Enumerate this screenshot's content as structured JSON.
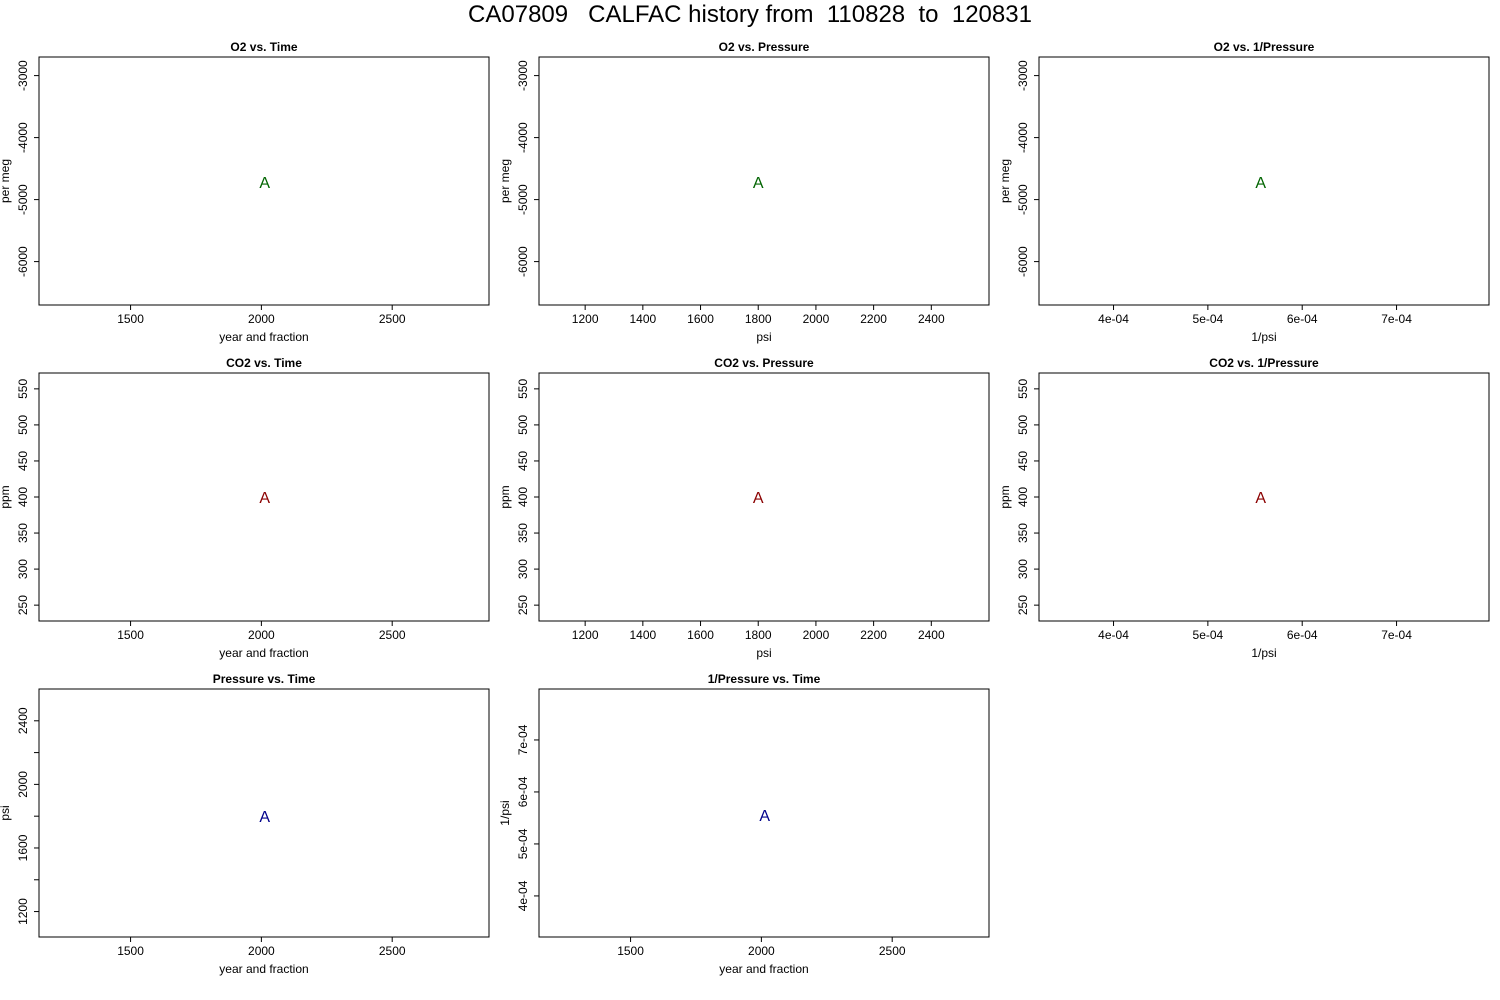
{
  "page_title": "CA07809   CALFAC history from  110828  to  120831",
  "chart_data": [
    {
      "type": "scatter",
      "title": "O2 vs. Time",
      "xlabel": "year and fraction",
      "ylabel": "per meg",
      "xlim": [
        1150,
        2870
      ],
      "ylim": [
        -6700,
        -2700
      ],
      "xticks": [
        1500,
        2000,
        2500
      ],
      "xtick_labels": [
        "1500",
        "2000",
        "2500"
      ],
      "yticks": [
        -6000,
        -5000,
        -4000,
        -3000
      ],
      "ytick_labels": [
        "-6000",
        "-5000",
        "-4000",
        "-3000"
      ],
      "ytick_rotated": true,
      "point_color": "#006400",
      "points": [
        {
          "x": 2012.5,
          "y": -4720,
          "label": "A"
        }
      ]
    },
    {
      "type": "scatter",
      "title": "O2 vs. Pressure",
      "xlabel": "psi",
      "ylabel": "per meg",
      "xlim": [
        1040,
        2600
      ],
      "ylim": [
        -6700,
        -2700
      ],
      "xticks": [
        1200,
        1400,
        1600,
        1800,
        2000,
        2200,
        2400
      ],
      "xtick_labels": [
        "1200",
        "1400",
        "1600",
        "1800",
        "2000",
        "2200",
        "2400"
      ],
      "yticks": [
        -6000,
        -5000,
        -4000,
        -3000
      ],
      "ytick_labels": [
        "-6000",
        "-5000",
        "-4000",
        "-3000"
      ],
      "ytick_rotated": true,
      "point_color": "#006400",
      "points": [
        {
          "x": 1800,
          "y": -4720,
          "label": "A"
        }
      ]
    },
    {
      "type": "scatter",
      "title": "O2 vs. 1/Pressure",
      "xlabel": "1/psi",
      "ylabel": "per meg",
      "xlim": [
        0.000321,
        0.000798
      ],
      "ylim": [
        -6700,
        -2700
      ],
      "xticks": [
        0.0004,
        0.0005,
        0.0006,
        0.0007
      ],
      "xtick_labels": [
        "4e-04",
        "5e-04",
        "6e-04",
        "7e-04"
      ],
      "yticks": [
        -6000,
        -5000,
        -4000,
        -3000
      ],
      "ytick_labels": [
        "-6000",
        "-5000",
        "-4000",
        "-3000"
      ],
      "ytick_rotated": true,
      "point_color": "#006400",
      "points": [
        {
          "x": 0.000556,
          "y": -4720,
          "label": "A"
        }
      ]
    },
    {
      "type": "scatter",
      "title": "CO2 vs. Time",
      "xlabel": "year and fraction",
      "ylabel": "ppm",
      "xlim": [
        1150,
        2870
      ],
      "ylim": [
        228,
        572
      ],
      "xticks": [
        1500,
        2000,
        2500
      ],
      "xtick_labels": [
        "1500",
        "2000",
        "2500"
      ],
      "yticks": [
        250,
        300,
        350,
        400,
        450,
        500,
        550
      ],
      "ytick_labels": [
        "250",
        "300",
        "350",
        "400",
        "450",
        "500",
        "550"
      ],
      "ytick_rotated": true,
      "point_color": "#8b0000",
      "points": [
        {
          "x": 2012.5,
          "y": 400,
          "label": "A"
        }
      ]
    },
    {
      "type": "scatter",
      "title": "CO2 vs. Pressure",
      "xlabel": "psi",
      "ylabel": "ppm",
      "xlim": [
        1040,
        2600
      ],
      "ylim": [
        228,
        572
      ],
      "xticks": [
        1200,
        1400,
        1600,
        1800,
        2000,
        2200,
        2400
      ],
      "xtick_labels": [
        "1200",
        "1400",
        "1600",
        "1800",
        "2000",
        "2200",
        "2400"
      ],
      "yticks": [
        250,
        300,
        350,
        400,
        450,
        500,
        550
      ],
      "ytick_labels": [
        "250",
        "300",
        "350",
        "400",
        "450",
        "500",
        "550"
      ],
      "ytick_rotated": true,
      "point_color": "#8b0000",
      "points": [
        {
          "x": 1800,
          "y": 400,
          "label": "A"
        }
      ]
    },
    {
      "type": "scatter",
      "title": "CO2 vs. 1/Pressure",
      "xlabel": "1/psi",
      "ylabel": "ppm",
      "xlim": [
        0.000321,
        0.000798
      ],
      "ylim": [
        228,
        572
      ],
      "xticks": [
        0.0004,
        0.0005,
        0.0006,
        0.0007
      ],
      "xtick_labels": [
        "4e-04",
        "5e-04",
        "6e-04",
        "7e-04"
      ],
      "yticks": [
        250,
        300,
        350,
        400,
        450,
        500,
        550
      ],
      "ytick_labels": [
        "250",
        "300",
        "350",
        "400",
        "450",
        "500",
        "550"
      ],
      "ytick_rotated": true,
      "point_color": "#8b0000",
      "points": [
        {
          "x": 0.000556,
          "y": 400,
          "label": "A"
        }
      ]
    },
    {
      "type": "scatter",
      "title": "Pressure vs. Time",
      "xlabel": "year and fraction",
      "ylabel": "psi",
      "xlim": [
        1150,
        2870
      ],
      "ylim": [
        1040,
        2600
      ],
      "xticks": [
        1500,
        2000,
        2500
      ],
      "xtick_labels": [
        "1500",
        "2000",
        "2500"
      ],
      "yticks": [
        1200,
        1400,
        1600,
        1800,
        2000,
        2200,
        2400
      ],
      "ytick_labels": [
        "1200",
        "",
        "1600",
        "",
        "2000",
        "",
        "2400"
      ],
      "ytick_rotated": true,
      "point_color": "#00008b",
      "points": [
        {
          "x": 2012.5,
          "y": 1800,
          "label": "A"
        }
      ]
    },
    {
      "type": "scatter",
      "title": "1/Pressure vs. Time",
      "xlabel": "year and fraction",
      "ylabel": "1/psi",
      "xlim": [
        1150,
        2870
      ],
      "ylim": [
        0.000321,
        0.000798
      ],
      "xticks": [
        1500,
        2000,
        2500
      ],
      "xtick_labels": [
        "1500",
        "2000",
        "2500"
      ],
      "yticks": [
        0.0004,
        0.0005,
        0.0006,
        0.0007
      ],
      "ytick_labels": [
        "4e-04",
        "5e-04",
        "6e-04",
        "7e-04"
      ],
      "ytick_rotated": true,
      "point_color": "#00008b",
      "points": [
        {
          "x": 2012.5,
          "y": 0.000556,
          "label": "A"
        }
      ]
    }
  ]
}
